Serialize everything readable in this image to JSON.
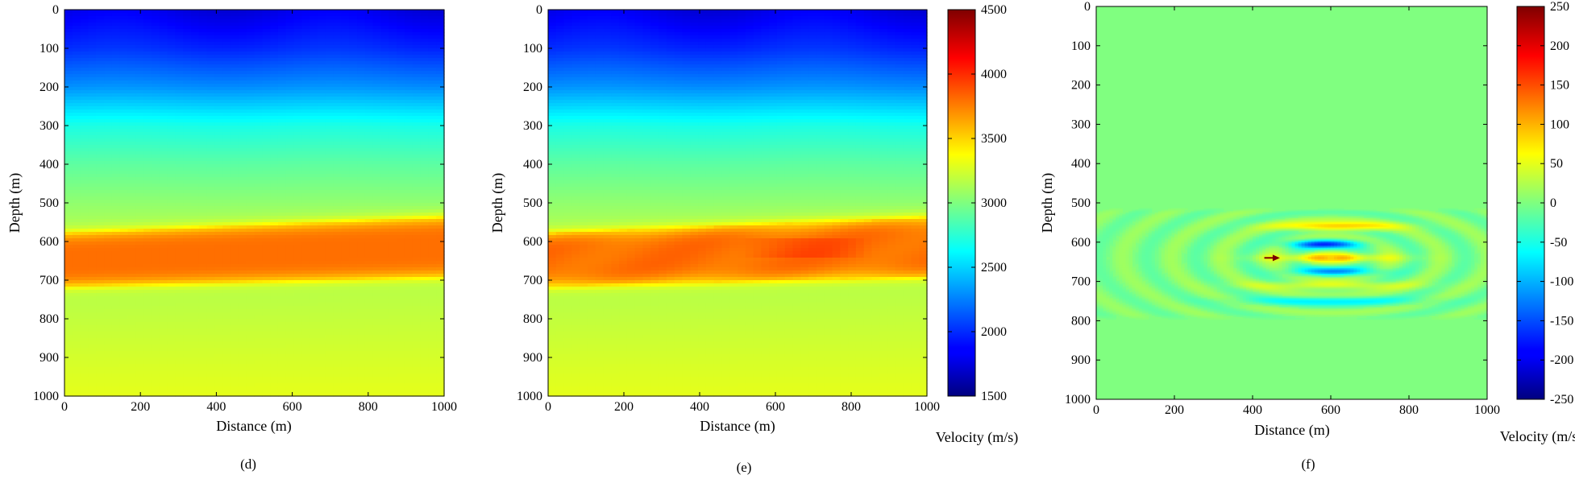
{
  "chart_data": [
    {
      "type": "heatmap",
      "panel_label": "(d)",
      "xlabel": "Distance (m)",
      "ylabel": "Depth (m)",
      "xlim": [
        0,
        1000
      ],
      "ylim": [
        0,
        1000
      ],
      "y_inverted": true,
      "x_ticks": [
        "0",
        "200",
        "400",
        "600",
        "800",
        "1000"
      ],
      "y_ticks": [
        "0",
        "100",
        "200",
        "300",
        "400",
        "500",
        "600",
        "700",
        "800",
        "900",
        "1000"
      ],
      "colormap": "jet",
      "color_range": [
        1500,
        4500
      ],
      "velocity_by_depth": [
        {
          "depth": 0,
          "value": 1800
        },
        {
          "depth": 100,
          "value": 2000
        },
        {
          "depth": 200,
          "value": 2300
        },
        {
          "depth": 300,
          "value": 2700
        },
        {
          "depth": 400,
          "value": 2900
        },
        {
          "depth": 500,
          "value": 3050
        }
      ],
      "high_velocity_layer": {
        "top_at_x0": 580,
        "top_at_x1000": 540,
        "bottom_at_x0": 715,
        "bottom_at_x1000": 690,
        "value": 3800
      },
      "below_layer": {
        "depth_700": 3100,
        "depth_1000": 3300
      }
    },
    {
      "type": "heatmap",
      "panel_label": "(e)",
      "xlabel": "Distance (m)",
      "ylabel": "Depth (m)",
      "xlim": [
        0,
        1000
      ],
      "ylim": [
        0,
        1000
      ],
      "y_inverted": true,
      "x_ticks": [
        "0",
        "200",
        "400",
        "600",
        "800",
        "1000"
      ],
      "y_ticks": [
        "0",
        "100",
        "200",
        "300",
        "400",
        "500",
        "600",
        "700",
        "800",
        "900",
        "1000"
      ],
      "colormap": "jet",
      "color_range": [
        1500,
        4500
      ],
      "colorbar_ticks": [
        "1500",
        "2000",
        "2500",
        "3000",
        "3500",
        "4000",
        "4500"
      ],
      "colorbar_label": "Velocity (m/s)",
      "high_velocity_layer": {
        "top_at_x0": 580,
        "top_at_x1000": 540,
        "bottom_at_x0": 715,
        "bottom_at_x1000": 690,
        "value": 3800
      },
      "anomaly": {
        "x_range": [
          500,
          850
        ],
        "depth_range": [
          590,
          640
        ],
        "value": 3900
      }
    },
    {
      "type": "heatmap",
      "panel_label": "(f)",
      "xlabel": "Distance (m)",
      "ylabel": "Depth (m)",
      "xlim": [
        0,
        1000
      ],
      "ylim": [
        0,
        1000
      ],
      "y_inverted": true,
      "x_ticks": [
        "0",
        "200",
        "400",
        "600",
        "800",
        "1000"
      ],
      "y_ticks": [
        "0",
        "100",
        "200",
        "300",
        "400",
        "500",
        "600",
        "700",
        "800",
        "900",
        "1000"
      ],
      "colormap": "jet",
      "color_range": [
        -250,
        250
      ],
      "background_value": 0,
      "colorbar_ticks": [
        "250",
        "200",
        "150",
        "100",
        "50",
        "0",
        "-50",
        "-100",
        "-150",
        "-200",
        "-250"
      ],
      "colorbar_label": "Velocity (m/s)",
      "difference_zone": {
        "x_range": [
          0,
          1000
        ],
        "depth_range": [
          510,
          800
        ]
      },
      "strong_bands": [
        {
          "x": [
            450,
            780
          ],
          "depth": 560,
          "value": 100
        },
        {
          "x": [
            480,
            680
          ],
          "depth": 605,
          "value": -150
        },
        {
          "x": [
            420,
            780
          ],
          "depth": 640,
          "value": 80
        },
        {
          "x": [
            480,
            740
          ],
          "depth": 675,
          "value": -100
        },
        {
          "x": [
            380,
            820
          ],
          "depth": 710,
          "value": 60
        },
        {
          "x": [
            350,
            850
          ],
          "depth": 750,
          "value": -60
        }
      ],
      "arrow": {
        "from": [
          430,
          640
        ],
        "to": [
          470,
          640
        ]
      }
    }
  ]
}
